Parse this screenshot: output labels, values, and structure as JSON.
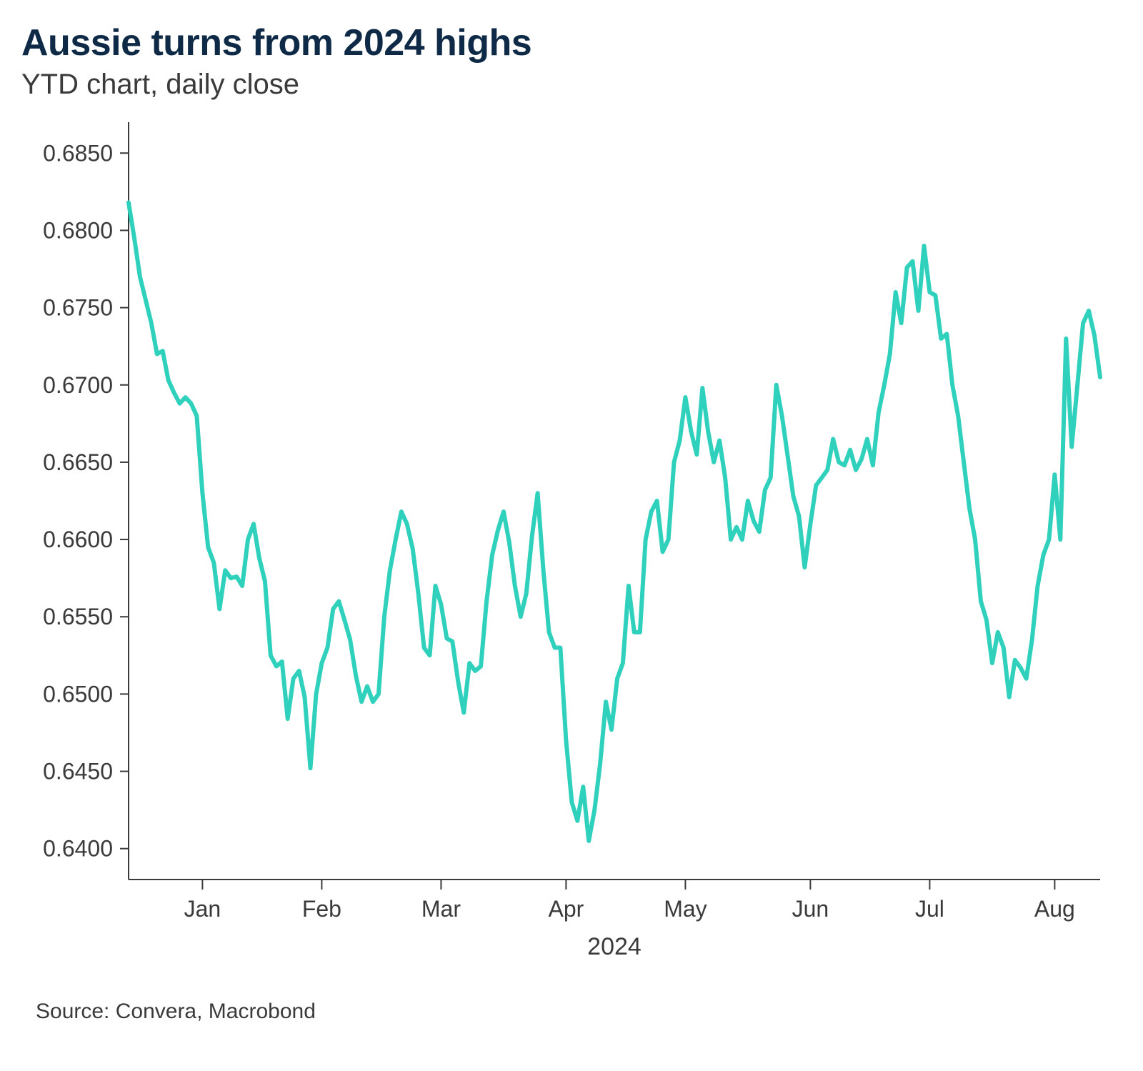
{
  "title": "Aussie turns from 2024 highs",
  "subtitle": "YTD chart, daily close",
  "source": "Source: Convera, Macrobond",
  "chart": {
    "type": "line",
    "line_color": "#2fd1bd",
    "line_width": 6,
    "background_color": "#ffffff",
    "axis_color": "#3a3a3a",
    "tick_color": "#3a3a3a",
    "label_fontsize": 32,
    "year_label": "2024",
    "ylim": [
      0.638,
      0.687
    ],
    "y_ticks": [
      0.64,
      0.645,
      0.65,
      0.655,
      0.66,
      0.665,
      0.67,
      0.675,
      0.68,
      0.685
    ],
    "y_tick_labels": [
      "0.6400",
      "0.6450",
      "0.6500",
      "0.6550",
      "0.6600",
      "0.6650",
      "0.6700",
      "0.6750",
      "0.6800",
      "0.6850"
    ],
    "x_month_labels": [
      "Jan",
      "Feb",
      "Mar",
      "Apr",
      "May",
      "Jun",
      "Jul",
      "Aug"
    ],
    "x_month_positions": [
      13,
      34,
      55,
      77,
      98,
      120,
      141,
      163
    ],
    "x_count": 172,
    "values": [
      0.6818,
      0.6795,
      0.677,
      0.6755,
      0.674,
      0.672,
      0.6722,
      0.6703,
      0.6695,
      0.6688,
      0.6692,
      0.6688,
      0.668,
      0.663,
      0.6595,
      0.6585,
      0.6555,
      0.658,
      0.6575,
      0.6576,
      0.657,
      0.66,
      0.661,
      0.6588,
      0.6573,
      0.6525,
      0.6518,
      0.6521,
      0.6484,
      0.651,
      0.6515,
      0.6498,
      0.6452,
      0.65,
      0.652,
      0.653,
      0.6555,
      0.656,
      0.6548,
      0.6535,
      0.6512,
      0.6495,
      0.6505,
      0.6495,
      0.65,
      0.655,
      0.658,
      0.66,
      0.6618,
      0.661,
      0.6594,
      0.6565,
      0.653,
      0.6525,
      0.657,
      0.6558,
      0.6536,
      0.6534,
      0.6508,
      0.6488,
      0.652,
      0.6515,
      0.6518,
      0.656,
      0.659,
      0.6606,
      0.6618,
      0.6598,
      0.657,
      0.655,
      0.6565,
      0.6602,
      0.663,
      0.658,
      0.654,
      0.653,
      0.653,
      0.647,
      0.643,
      0.6418,
      0.644,
      0.6405,
      0.6425,
      0.6455,
      0.6495,
      0.6477,
      0.651,
      0.652,
      0.657,
      0.654,
      0.654,
      0.66,
      0.6618,
      0.6625,
      0.6592,
      0.66,
      0.665,
      0.6664,
      0.6692,
      0.667,
      0.6655,
      0.6698,
      0.667,
      0.665,
      0.6664,
      0.664,
      0.66,
      0.6608,
      0.66,
      0.6625,
      0.6612,
      0.6605,
      0.6632,
      0.664,
      0.67,
      0.668,
      0.6654,
      0.6628,
      0.6615,
      0.6582,
      0.661,
      0.6635,
      0.664,
      0.6645,
      0.6665,
      0.665,
      0.6648,
      0.6658,
      0.6645,
      0.6652,
      0.6665,
      0.6648,
      0.6682,
      0.67,
      0.672,
      0.676,
      0.674,
      0.6776,
      0.678,
      0.6748,
      0.679,
      0.676,
      0.6758,
      0.673,
      0.6733,
      0.67,
      0.668,
      0.665,
      0.662,
      0.66,
      0.656,
      0.6548,
      0.652,
      0.654,
      0.653,
      0.6498,
      0.6522,
      0.6517,
      0.651,
      0.6535,
      0.657,
      0.659,
      0.66,
      0.6642,
      0.66,
      0.673,
      0.666,
      0.67,
      0.674,
      0.6748,
      0.6732,
      0.6705
    ]
  }
}
